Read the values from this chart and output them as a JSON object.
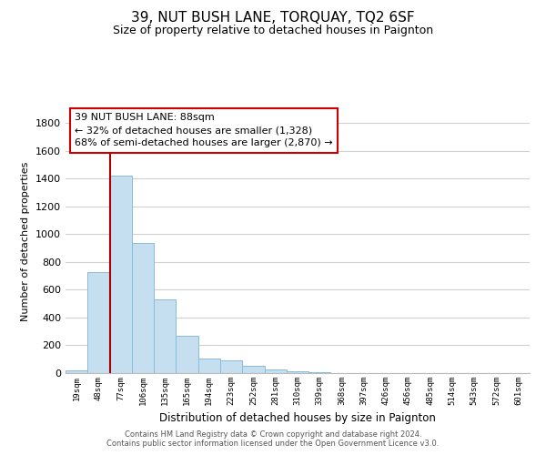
{
  "title": "39, NUT BUSH LANE, TORQUAY, TQ2 6SF",
  "subtitle": "Size of property relative to detached houses in Paignton",
  "xlabel": "Distribution of detached houses by size in Paignton",
  "ylabel": "Number of detached properties",
  "bar_labels": [
    "19sqm",
    "48sqm",
    "77sqm",
    "106sqm",
    "135sqm",
    "165sqm",
    "194sqm",
    "223sqm",
    "252sqm",
    "281sqm",
    "310sqm",
    "339sqm",
    "368sqm",
    "397sqm",
    "426sqm",
    "456sqm",
    "485sqm",
    "514sqm",
    "543sqm",
    "572sqm",
    "601sqm"
  ],
  "bar_values": [
    20,
    730,
    1425,
    935,
    530,
    270,
    103,
    90,
    50,
    28,
    10,
    5,
    3,
    1,
    0,
    0,
    0,
    0,
    0,
    0,
    0
  ],
  "bar_color": "#c5dff0",
  "bar_edge_color": "#8abcd8",
  "ylim": [
    0,
    1900
  ],
  "yticks": [
    0,
    200,
    400,
    600,
    800,
    1000,
    1200,
    1400,
    1600,
    1800
  ],
  "marker_color": "#aa0000",
  "annotation_title": "39 NUT BUSH LANE: 88sqm",
  "annotation_line1": "← 32% of detached houses are smaller (1,328)",
  "annotation_line2": "68% of semi-detached houses are larger (2,870) →",
  "annotation_box_color": "#ffffff",
  "annotation_box_edge": "#cc0000",
  "footer1": "Contains HM Land Registry data © Crown copyright and database right 2024.",
  "footer2": "Contains public sector information licensed under the Open Government Licence v3.0.",
  "background_color": "#ffffff",
  "grid_color": "#d0d0d0"
}
